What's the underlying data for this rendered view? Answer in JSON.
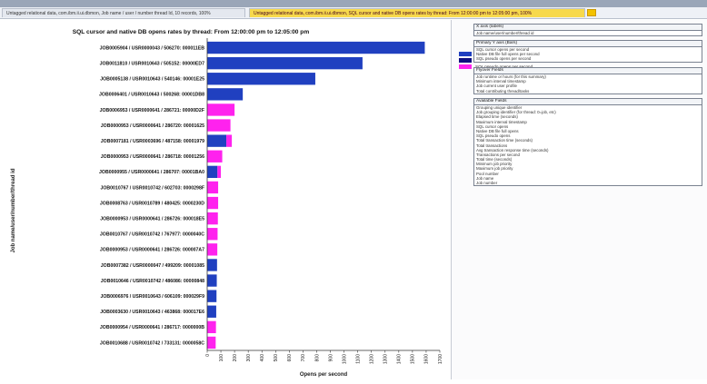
{
  "tabs": [
    {
      "label": "Untagged relational data, com.ibm.ii.ui.dbmon, Job name / user / number thread Id, 10 records, 100%"
    },
    {
      "label": "Untagged relational data, com.ibm.ii.ui.dbmon, SQL cursor and native DB opens rates by thread: From 12:00:00 pm to 12:05:00 pm, 100%"
    }
  ],
  "chart_data": {
    "type": "bar",
    "orientation": "horizontal",
    "title": "SQL cursor and native DB opens rates by thread: From 12:00:00 pm to 12:05:00 pm",
    "xlabel": "Opens per second",
    "ylabel": "Job name/user/number/thread id",
    "xlim": [
      0,
      1700
    ],
    "xticks": [
      0,
      100,
      200,
      300,
      400,
      500,
      600,
      700,
      800,
      900,
      1000,
      1100,
      1200,
      1300,
      1400,
      1500,
      1600,
      1700
    ],
    "grid": false,
    "colors": {
      "blue": "#2040c0",
      "magenta": "#ff22ee"
    },
    "bars": [
      {
        "label": "JOB0005904 / USR0000043 / 506270: 000011EB",
        "value": 1590,
        "color": "blue"
      },
      {
        "label": "JOB0011810 / USR0010643 / 505152: 00000ED7",
        "value": 1135,
        "color": "blue"
      },
      {
        "label": "JOB0005138 / USR0010643 / 540146: 00001E25",
        "value": 790,
        "color": "blue"
      },
      {
        "label": "JOB0006401 / USR0010643 / 500268: 00001DB8",
        "value": 260,
        "color": "blue"
      },
      {
        "label": "JOB0006953 / USR0000641 / 286721: 00000D2F",
        "value": 200,
        "color": "magenta"
      },
      {
        "label": "JOB0000953 / USR0000641 / 286720: 00001625",
        "value": 170,
        "color": "magenta"
      },
      {
        "label": "JOB0007181 / USR0003696 / 487158: 00001979",
        "value": 140,
        "color": "blue",
        "stack": 40,
        "stack_color": "magenta"
      },
      {
        "label": "JOB0000953 / USR0000641 / 286718: 00001256",
        "value": 110,
        "color": "magenta"
      },
      {
        "label": "JOB0000955 / USR0000641 / 286707: 00001BA0",
        "value": 75,
        "color": "blue",
        "stack": 25,
        "stack_color": "magenta"
      },
      {
        "label": "JOB0010767 / USR0010742 / 602703: 0000298F",
        "value": 80,
        "color": "magenta"
      },
      {
        "label": "JOB0008763 / USR0010789 / 480425: 0000230D",
        "value": 80,
        "color": "magenta"
      },
      {
        "label": "JOB0000953 / USR0000641 / 286726: 000018E5",
        "value": 78,
        "color": "magenta"
      },
      {
        "label": "JOB0010767 / USR0010742 / 767977: 0000040C",
        "value": 76,
        "color": "magenta"
      },
      {
        "label": "JOB0000953 / USR0000641 / 286726: 000007A7",
        "value": 74,
        "color": "magenta"
      },
      {
        "label": "JOB0007382 / USR0000047 / 499209: 00001085",
        "value": 72,
        "color": "blue"
      },
      {
        "label": "JOB0010646 / USR0010742 / 486086: 00000848",
        "value": 70,
        "color": "blue"
      },
      {
        "label": "JOB0006976 / USR0010643 / 606109: 000029F9",
        "value": 68,
        "color": "blue"
      },
      {
        "label": "JOB0003630 / USR0010643 / 463868: 000017E6",
        "value": 66,
        "color": "blue"
      },
      {
        "label": "JOB0000954 / USR0000641 / 286717: 0000000B",
        "value": 64,
        "color": "magenta"
      },
      {
        "label": "JOB0010688 / USR0010742 / 733131: 0000058C",
        "value": 62,
        "color": "magenta"
      }
    ]
  },
  "panel": {
    "legend": [
      {
        "label": "SQL cursor opens per second",
        "color": "#2040c0"
      },
      {
        "label": "Native DB file full opens per second",
        "color": "#101080"
      },
      {
        "label": "SQL pseudo opens per second",
        "color": "#ff22ee"
      }
    ],
    "sections": [
      {
        "header": "X axis (labels)",
        "items": [
          "Job name/user/number/thread id"
        ]
      },
      {
        "header": "Primary Y axis (Bars)",
        "items": [
          "SQL cursor opens per second",
          "Native DB file full opens per second",
          "SQL pseudo opens per second"
        ]
      },
      {
        "header": "Flyover Fields",
        "items": [
          "Job runtime or hours (for this summary)",
          "Minimum interval timestamp",
          "Job current user profile",
          "Total contributing thread/tasks"
        ]
      },
      {
        "header": "Available Fields",
        "items": [
          "Grouping unique identifier",
          "Job grouping identifier (for thread: 0=job, etc)",
          "Elapsed time (seconds)",
          "Maximum interval timestamp",
          "SQL cursor opens",
          "Native DB file full opens",
          "SQL pseudo opens",
          "Total transaction time (seconds)",
          "Total transactions",
          "Avg transaction response time (seconds)",
          "Transactions per second",
          "Total time (seconds)",
          "Minimum job priority",
          "Maximum job priority",
          "Pool number",
          "Job name",
          "Job number"
        ]
      }
    ]
  }
}
